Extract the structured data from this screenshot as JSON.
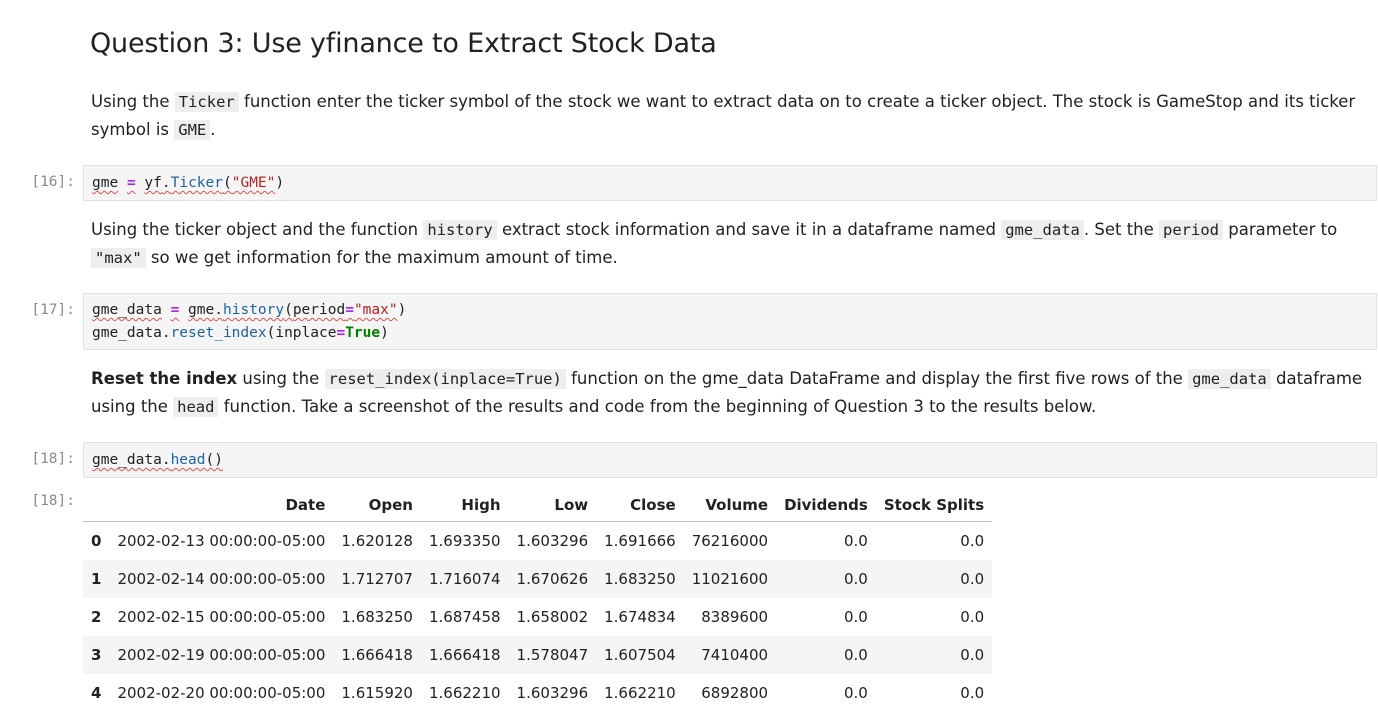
{
  "heading": "Question 3: Use yfinance to Extract Stock Data",
  "para1": {
    "t1": "Using the ",
    "c1": "Ticker",
    "t2": " function enter the ticker symbol of the stock we want to extract data on to create a ticker object. The stock is GameStop and its ticker symbol is ",
    "c2": "GME",
    "t3": "."
  },
  "cell16": {
    "prompt": "[16]:",
    "tokens": [
      "gme",
      " ",
      "=",
      " ",
      "yf",
      ".",
      "Ticker",
      "(",
      "\"GME\"",
      ")"
    ]
  },
  "para2": {
    "t1": "Using the ticker object and the function ",
    "c1": "history",
    "t2": " extract stock information and save it in a dataframe named ",
    "c2": "gme_data",
    "t3": ". Set the ",
    "c3": "period",
    "t4": " parameter to ",
    "c4": "\"max\"",
    "t5": " so we get information for the maximum amount of time."
  },
  "cell17": {
    "prompt": "[17]:",
    "line1": [
      "gme_data",
      " ",
      "=",
      " ",
      "gme",
      ".",
      "history",
      "(",
      "period",
      "=",
      "\"max\"",
      ")"
    ],
    "line2": [
      "gme_data",
      ".",
      "reset_index",
      "(",
      "inplace",
      "=",
      "True",
      ")"
    ]
  },
  "para3": {
    "b1": "Reset the index",
    "t1": " using the ",
    "c1": "reset_index(inplace=True)",
    "t2": " function on the gme_data DataFrame and display the first five rows of the ",
    "c2": "gme_data",
    "t3": " dataframe using the ",
    "c3": "head",
    "t4": " function. Take a screenshot of the results and code from the beginning of Question 3 to the results below."
  },
  "cell18": {
    "prompt": "[18]:",
    "tokens": [
      "gme_data",
      ".",
      "head",
      "()"
    ]
  },
  "output18": {
    "prompt": "[18]:",
    "columns": [
      "",
      "Date",
      "Open",
      "High",
      "Low",
      "Close",
      "Volume",
      "Dividends",
      "Stock Splits"
    ],
    "rows": [
      [
        "0",
        "2002-02-13 00:00:00-05:00",
        "1.620128",
        "1.693350",
        "1.603296",
        "1.691666",
        "76216000",
        "0.0",
        "0.0"
      ],
      [
        "1",
        "2002-02-14 00:00:00-05:00",
        "1.712707",
        "1.716074",
        "1.670626",
        "1.683250",
        "11021600",
        "0.0",
        "0.0"
      ],
      [
        "2",
        "2002-02-15 00:00:00-05:00",
        "1.683250",
        "1.687458",
        "1.658002",
        "1.674834",
        "8389600",
        "0.0",
        "0.0"
      ],
      [
        "3",
        "2002-02-19 00:00:00-05:00",
        "1.666418",
        "1.666418",
        "1.578047",
        "1.607504",
        "7410400",
        "0.0",
        "0.0"
      ],
      [
        "4",
        "2002-02-20 00:00:00-05:00",
        "1.615920",
        "1.662210",
        "1.603296",
        "1.662210",
        "6892800",
        "0.0",
        "0.0"
      ]
    ]
  }
}
